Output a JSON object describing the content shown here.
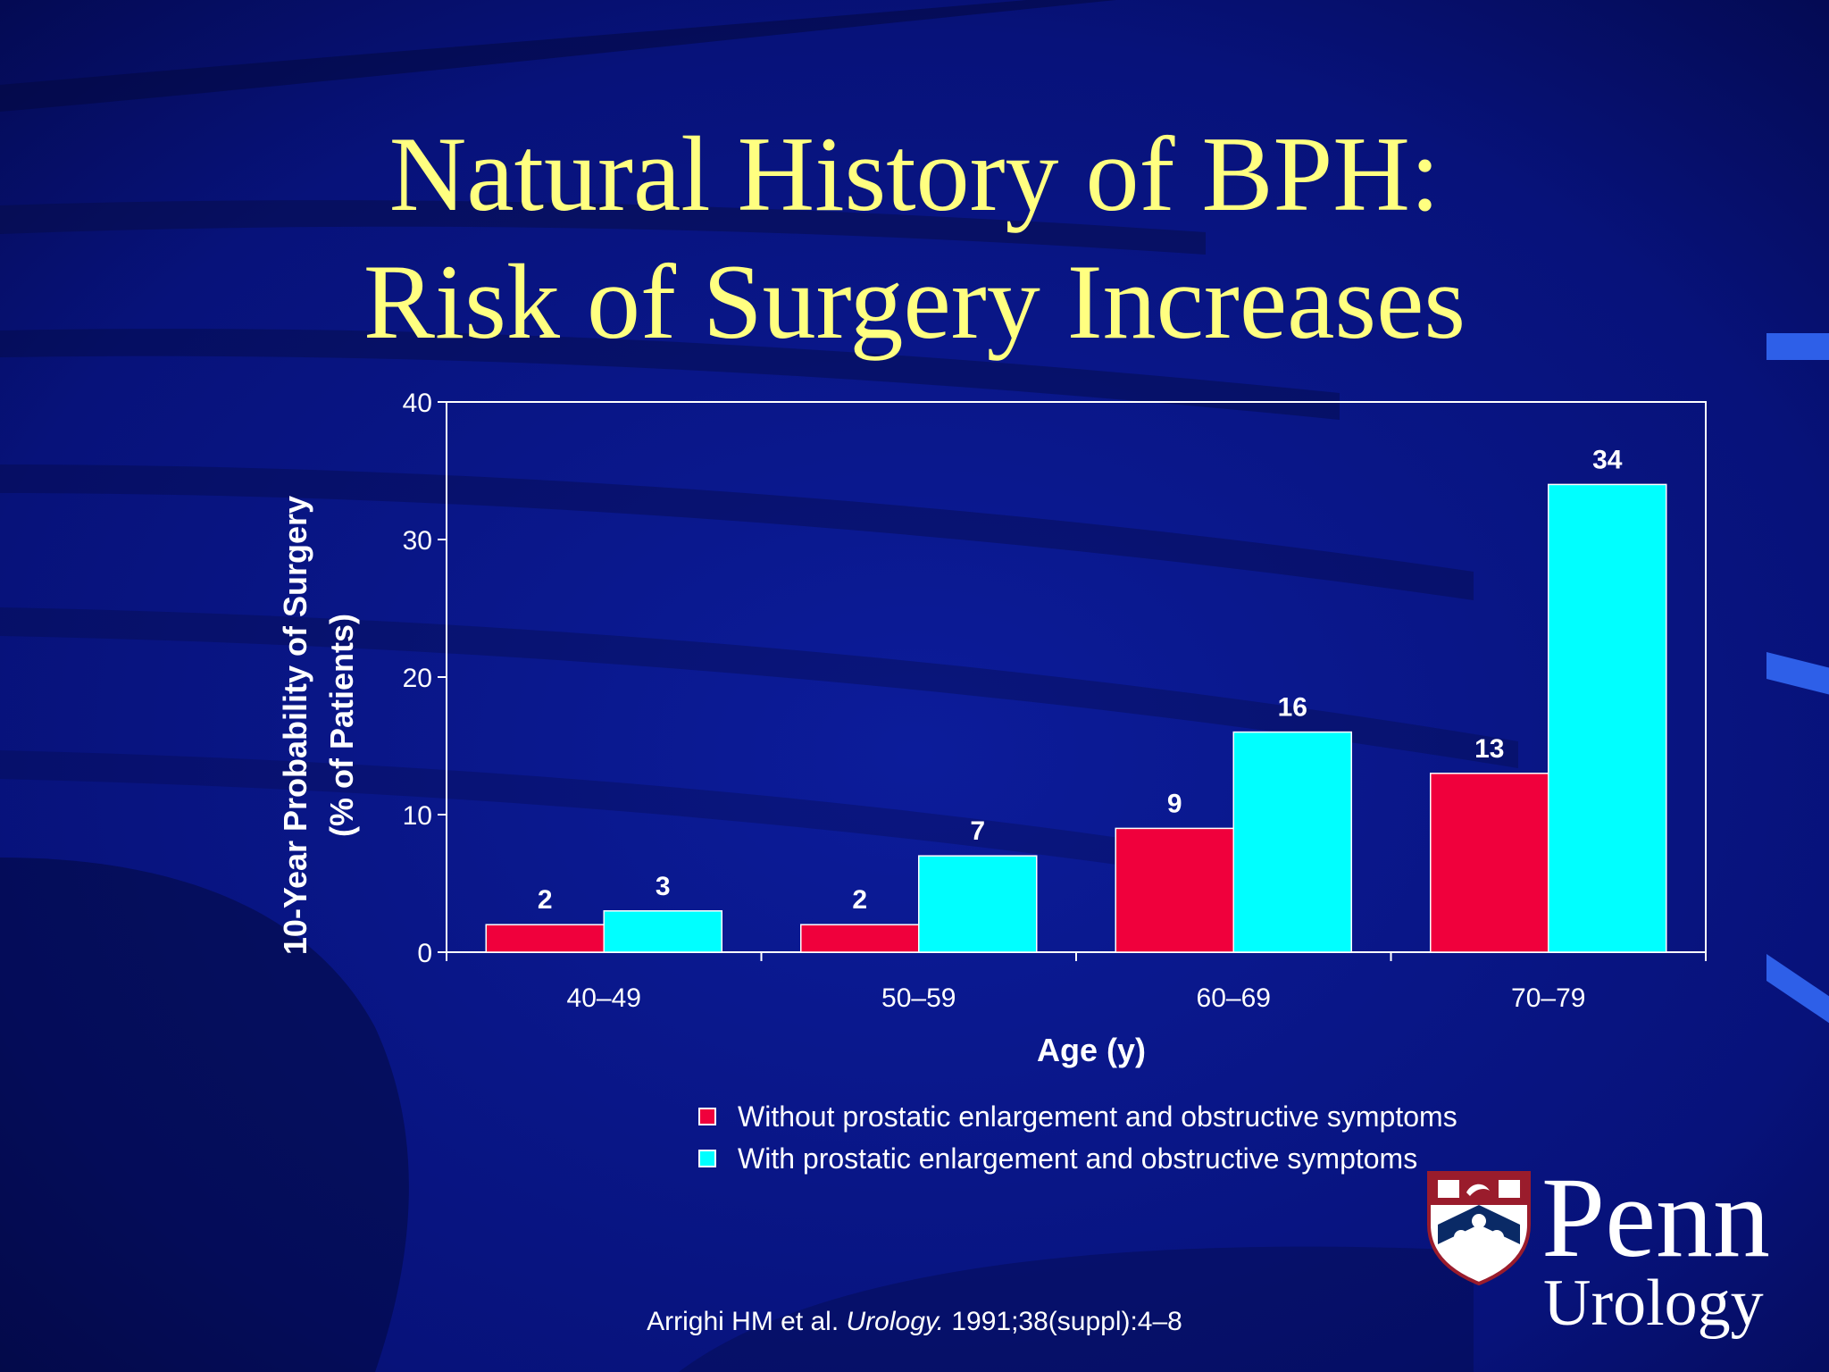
{
  "slide": {
    "title_line1": "Natural History of BPH:",
    "title_line2": "Risk of Surgery Increases",
    "citation_prefix": "Arrighi HM et al. ",
    "citation_journal": "Urology.",
    "citation_suffix": " 1991;38(suppl):4–8",
    "logo_name": "Penn",
    "logo_subtitle": "Urology",
    "colors": {
      "background": "#07127a",
      "title": "#ffff80",
      "series_without": "#f0003c",
      "series_with": "#00ffff",
      "text": "#ffffff"
    }
  },
  "chart_data": {
    "type": "bar",
    "categories": [
      "40–49",
      "50–59",
      "60–69",
      "70–79"
    ],
    "series": [
      {
        "name": "Without prostatic enlargement and obstructive symptoms",
        "values": [
          2,
          2,
          9,
          13
        ]
      },
      {
        "name": "With prostatic enlargement and obstructive symptoms",
        "values": [
          3,
          7,
          16,
          34
        ]
      }
    ],
    "title": "",
    "xlabel": "Age (y)",
    "ylabel_line1": "10-Year Probability of Surgery",
    "ylabel_line2": "(% of Patients)",
    "ylim": [
      0,
      40
    ],
    "yticks": [
      0,
      10,
      20,
      30,
      40
    ],
    "grid": false,
    "legend_position": "bottom"
  }
}
